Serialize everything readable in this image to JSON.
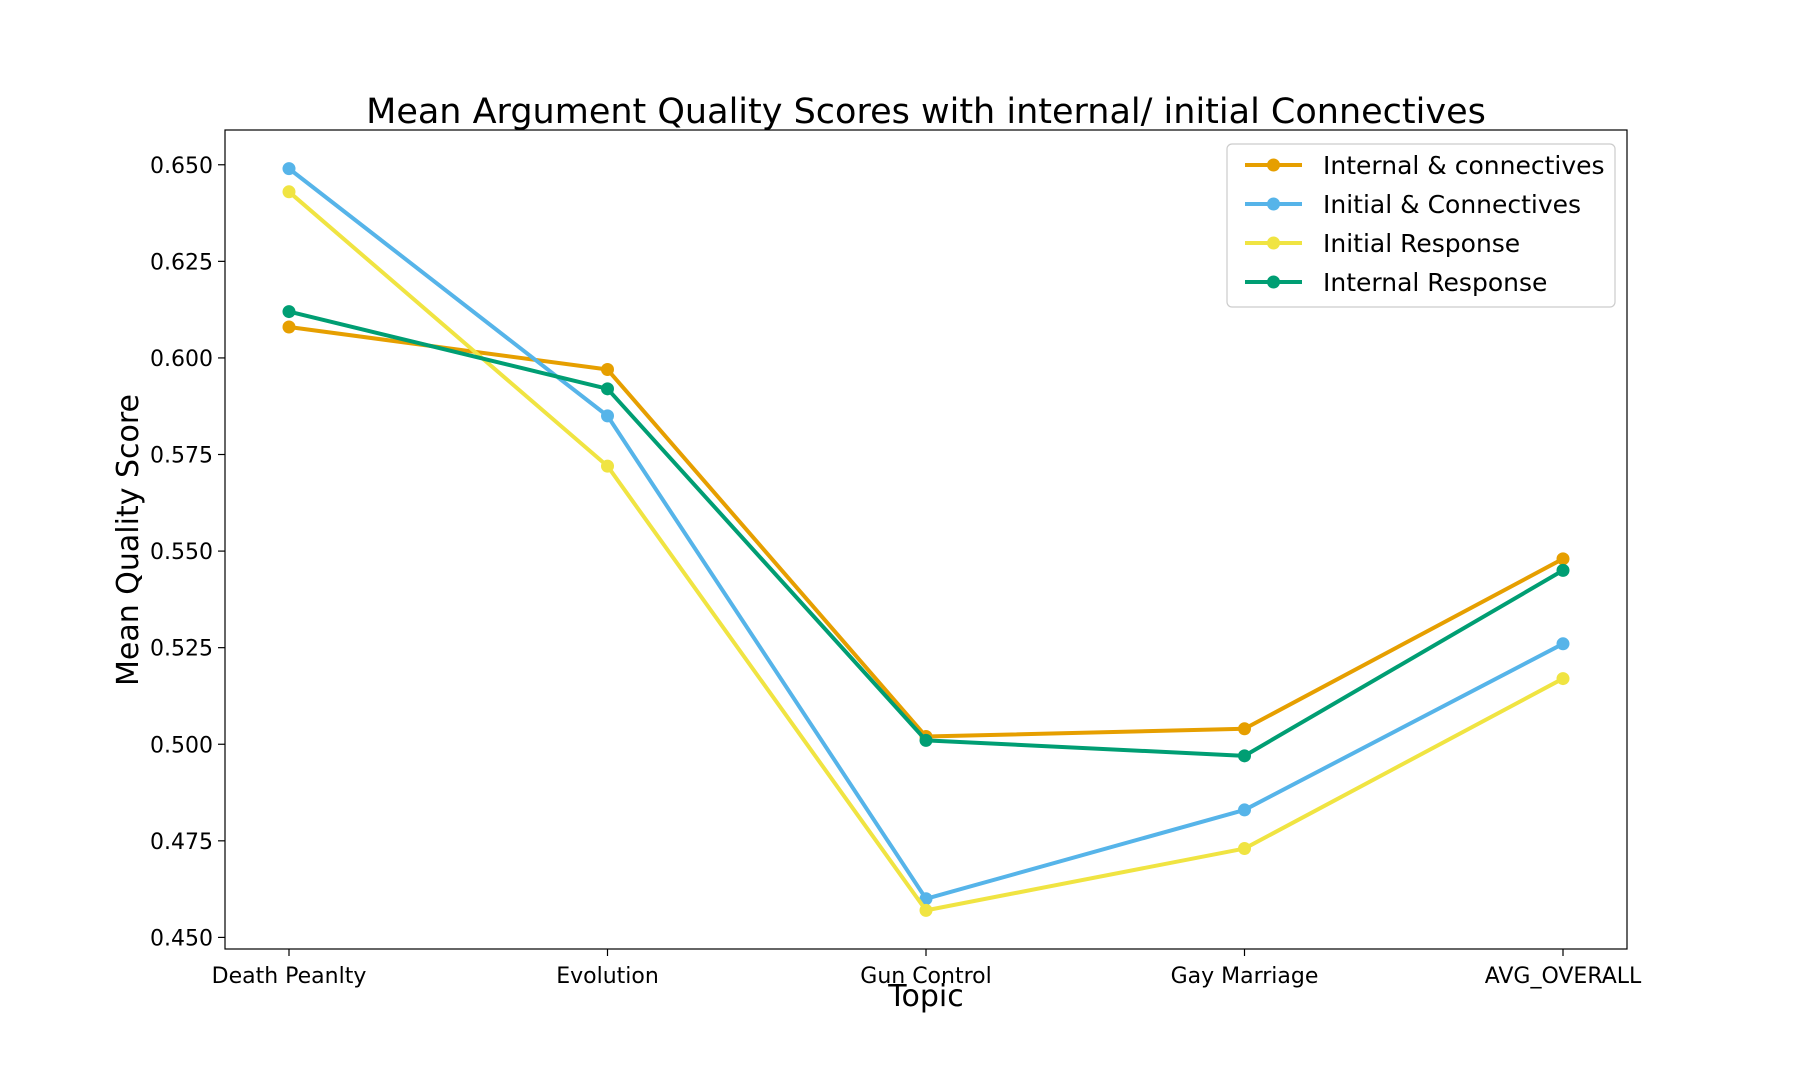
{
  "chart_data": {
    "type": "line",
    "title": "Mean Argument Quality Scores with internal/ initial Connectives",
    "xlabel": "Topic",
    "ylabel": "Mean Quality Score",
    "categories": [
      "Death Peanlty",
      "Evolution",
      "Gun Control",
      "Gay Marriage",
      "AVG_OVERALL"
    ],
    "ylim": [
      0.447,
      0.659
    ],
    "yticks": [
      "0.450",
      "0.475",
      "0.500",
      "0.525",
      "0.550",
      "0.575",
      "0.600",
      "0.625",
      "0.650"
    ],
    "grid": false,
    "legend_position": "top-right",
    "series": [
      {
        "name": "Internal & connectives",
        "color": "#E69F00",
        "values": [
          0.608,
          0.597,
          0.502,
          0.504,
          0.548
        ]
      },
      {
        "name": "Initial & Connectives",
        "color": "#56B4E9",
        "values": [
          0.649,
          0.585,
          0.46,
          0.483,
          0.526
        ]
      },
      {
        "name": "Initial Response",
        "color": "#F0E442",
        "values": [
          0.643,
          0.572,
          0.457,
          0.473,
          0.517
        ]
      },
      {
        "name": "Internal Response",
        "color": "#009E73",
        "values": [
          0.612,
          0.592,
          0.501,
          0.497,
          0.545
        ]
      }
    ]
  }
}
